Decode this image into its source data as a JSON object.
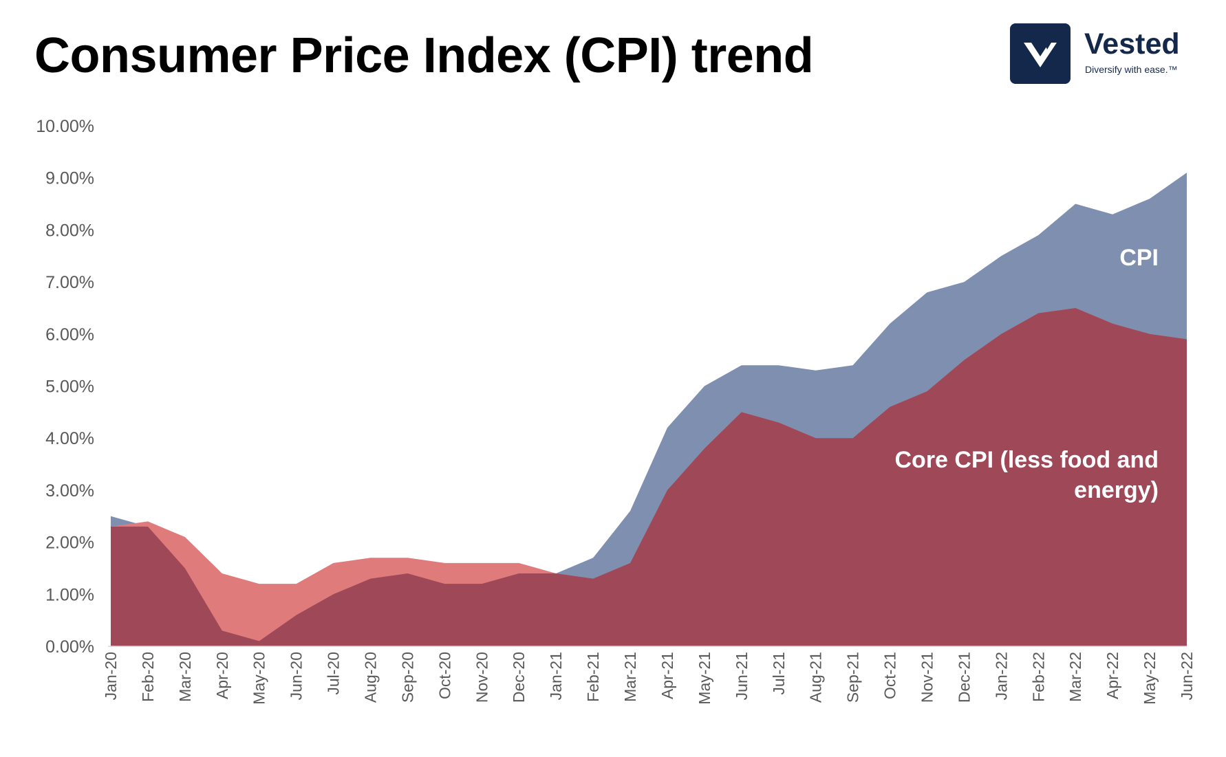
{
  "title": "Consumer Price Index (CPI) trend",
  "logo": {
    "name": "Vested",
    "tagline": "Diversify with ease.™",
    "icon": "vested-v-logo-icon",
    "color": "#14284b"
  },
  "chart_data": {
    "type": "area",
    "title": "Consumer Price Index (CPI) trend",
    "categories": [
      "Jan-20",
      "Feb-20",
      "Mar-20",
      "Apr-20",
      "May-20",
      "Jun-20",
      "Jul-20",
      "Aug-20",
      "Sep-20",
      "Oct-20",
      "Nov-20",
      "Dec-20",
      "Jan-21",
      "Feb-21",
      "Mar-21",
      "Apr-21",
      "May-21",
      "Jun-21",
      "Jul-21",
      "Aug-21",
      "Sep-21",
      "Oct-21",
      "Nov-21",
      "Dec-21",
      "Jan-22",
      "Feb-22",
      "Mar-22",
      "Apr-22",
      "May-22",
      "Jun-22"
    ],
    "series": [
      {
        "name": "CPI",
        "color": "#7f8fb0",
        "values": [
          2.5,
          2.3,
          1.5,
          0.3,
          0.1,
          0.6,
          1.0,
          1.3,
          1.4,
          1.2,
          1.2,
          1.4,
          1.4,
          1.7,
          2.6,
          4.2,
          5.0,
          5.4,
          5.4,
          5.3,
          5.4,
          6.2,
          6.8,
          7.0,
          7.5,
          7.9,
          8.5,
          8.3,
          8.6,
          9.1
        ]
      },
      {
        "name": "Core CPI (less food and energy)",
        "color": "#df7b7b",
        "values": [
          2.3,
          2.4,
          2.1,
          1.4,
          1.2,
          1.2,
          1.6,
          1.7,
          1.7,
          1.6,
          1.6,
          1.6,
          1.4,
          1.3,
          1.6,
          3.0,
          3.8,
          4.5,
          4.3,
          4.0,
          4.0,
          4.6,
          4.9,
          5.5,
          6.0,
          6.4,
          6.5,
          6.2,
          6.0,
          5.9
        ]
      }
    ],
    "overlap_color": "#9e4858",
    "yticks": [
      "0.00%",
      "1.00%",
      "2.00%",
      "3.00%",
      "4.00%",
      "5.00%",
      "6.00%",
      "7.00%",
      "8.00%",
      "9.00%",
      "10.00%"
    ],
    "ylim": [
      0,
      10
    ],
    "grid": false,
    "legend": "none",
    "annotations": {
      "cpi": "CPI",
      "core_line1": "Core CPI (less food and",
      "core_line2": "energy)"
    }
  }
}
